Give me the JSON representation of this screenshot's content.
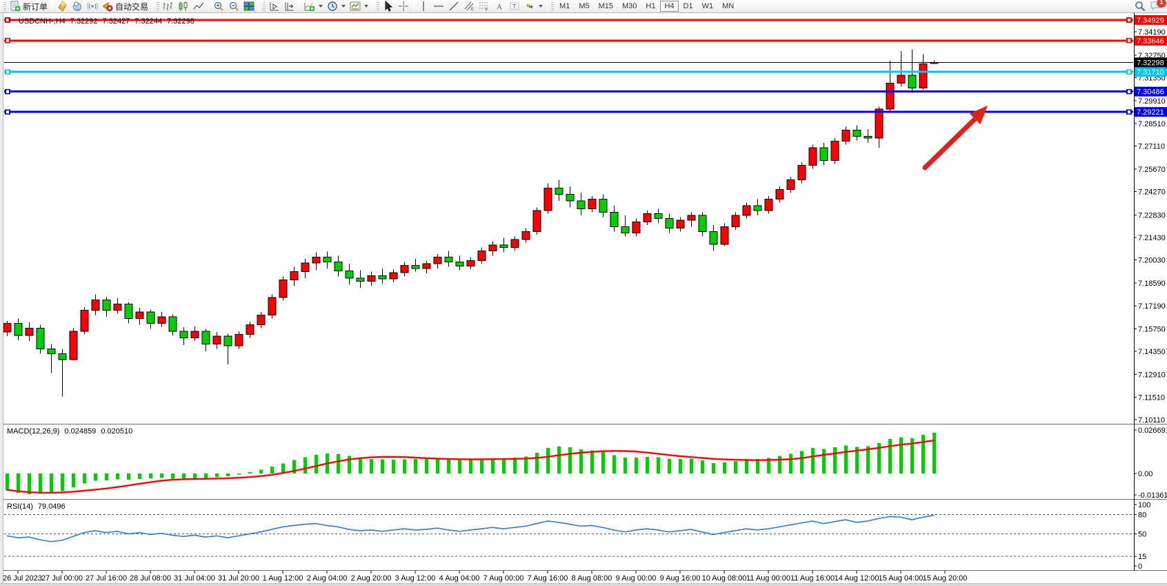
{
  "window": {
    "new_order_label": "新订单",
    "auto_trading_label": "自动交易",
    "timeframes": [
      "M1",
      "M5",
      "M15",
      "M30",
      "H1",
      "H4",
      "D1",
      "W1",
      "MN"
    ],
    "active_timeframe": "H4",
    "notification_count": "1"
  },
  "chart_data": {
    "type": "candlestick",
    "symbol_title": "USDCNH-,H4",
    "ohlc_readout": {
      "open": "7.32292",
      "high": "7.32427",
      "low": "7.32244",
      "close": "7.32298"
    },
    "bid_price": "7.32298",
    "price_axis_ticks": [
      "7.34190",
      "7.32750",
      "7.31350",
      "7.29910",
      "7.28510",
      "7.27110",
      "7.25670",
      "7.24270",
      "7.22830",
      "7.21430",
      "7.20030",
      "7.18590",
      "7.17190",
      "7.15750",
      "7.14350",
      "7.12910",
      "7.11510",
      "7.10110"
    ],
    "hlines": [
      {
        "price": "7.34929",
        "color": "#ff0000"
      },
      {
        "price": "7.33646",
        "color": "#ff0000"
      },
      {
        "price": "7.31710",
        "color": "#00c5ef"
      },
      {
        "price": "7.30486",
        "color": "#0000ff"
      },
      {
        "price": "7.29221",
        "color": "#0000ff"
      }
    ],
    "dates": [
      "26 Jul 2023",
      "27 Jul 00:00",
      "27 Jul 16:00",
      "28 Jul 08:00",
      "31 Jul 04:00",
      "31 Jul 20:00",
      "1 Aug 12:00",
      "2 Aug 04:00",
      "2 Aug 20:00",
      "3 Aug 12:00",
      "4 Aug 04:00",
      "7 Aug 00:00",
      "7 Aug 16:00",
      "8 Aug 08:00",
      "9 Aug 00:00",
      "9 Aug 16:00",
      "10 Aug 08:00",
      "11 Aug 00:00",
      "11 Aug 16:00",
      "14 Aug 12:00",
      "15 Aug 04:00",
      "15 Aug 20:00"
    ],
    "candles": [
      [
        7.1555,
        7.1625,
        7.153,
        7.161
      ],
      [
        7.161,
        7.164,
        7.1505,
        7.1535
      ],
      [
        7.1535,
        7.1615,
        7.15,
        7.158
      ],
      [
        7.158,
        7.16,
        7.142,
        7.145
      ],
      [
        7.145,
        7.148,
        7.13,
        7.142
      ],
      [
        7.142,
        7.145,
        7.1155,
        7.1385
      ],
      [
        7.1385,
        7.158,
        7.138,
        7.156
      ],
      [
        7.156,
        7.171,
        7.154,
        7.169
      ],
      [
        7.169,
        7.179,
        7.166,
        7.1755
      ],
      [
        7.1755,
        7.1775,
        7.165,
        7.169
      ],
      [
        7.169,
        7.1765,
        7.167,
        7.173
      ],
      [
        7.173,
        7.174,
        7.161,
        7.164
      ],
      [
        7.164,
        7.1705,
        7.16,
        7.168
      ],
      [
        7.168,
        7.1695,
        7.1575,
        7.161
      ],
      [
        7.161,
        7.168,
        7.1585,
        7.165
      ],
      [
        7.165,
        7.1665,
        7.1535,
        7.156
      ],
      [
        7.156,
        7.1585,
        7.1475,
        7.152
      ],
      [
        7.152,
        7.159,
        7.15,
        7.156
      ],
      [
        7.156,
        7.1575,
        7.1435,
        7.148
      ],
      [
        7.148,
        7.1555,
        7.145,
        7.153
      ],
      [
        7.153,
        7.1545,
        7.1355,
        7.147
      ],
      [
        7.147,
        7.156,
        7.145,
        7.154
      ],
      [
        7.154,
        7.162,
        7.152,
        7.16
      ],
      [
        7.16,
        7.168,
        7.158,
        7.166
      ],
      [
        7.166,
        7.179,
        7.164,
        7.177
      ],
      [
        7.177,
        7.19,
        7.175,
        7.188
      ],
      [
        7.188,
        7.196,
        7.184,
        7.193
      ],
      [
        7.193,
        7.201,
        7.189,
        7.1985
      ],
      [
        7.1985,
        7.205,
        7.194,
        7.202
      ],
      [
        7.202,
        7.2055,
        7.195,
        7.199
      ],
      [
        7.199,
        7.203,
        7.19,
        7.1935
      ],
      [
        7.1935,
        7.198,
        7.185,
        7.189
      ],
      [
        7.189,
        7.194,
        7.183,
        7.187
      ],
      [
        7.187,
        7.193,
        7.184,
        7.1905
      ],
      [
        7.1905,
        7.195,
        7.1855,
        7.1885
      ],
      [
        7.1885,
        7.1945,
        7.1865,
        7.1925
      ],
      [
        7.1925,
        7.199,
        7.19,
        7.197
      ],
      [
        7.197,
        7.201,
        7.193,
        7.195
      ],
      [
        7.195,
        7.2,
        7.192,
        7.198
      ],
      [
        7.198,
        7.204,
        7.195,
        7.202
      ],
      [
        7.202,
        7.206,
        7.196,
        7.199
      ],
      [
        7.199,
        7.203,
        7.194,
        7.1965
      ],
      [
        7.1965,
        7.202,
        7.1945,
        7.2
      ],
      [
        7.2,
        7.208,
        7.198,
        7.206
      ],
      [
        7.206,
        7.212,
        7.203,
        7.2095
      ],
      [
        7.2095,
        7.214,
        7.205,
        7.208
      ],
      [
        7.208,
        7.215,
        7.206,
        7.213
      ],
      [
        7.213,
        7.22,
        7.211,
        7.218
      ],
      [
        7.218,
        7.233,
        7.216,
        7.231
      ],
      [
        7.231,
        7.248,
        7.229,
        7.245
      ],
      [
        7.245,
        7.25,
        7.237,
        7.241
      ],
      [
        7.241,
        7.246,
        7.233,
        7.237
      ],
      [
        7.237,
        7.242,
        7.228,
        7.232
      ],
      [
        7.232,
        7.24,
        7.23,
        7.238
      ],
      [
        7.238,
        7.241,
        7.227,
        7.23
      ],
      [
        7.23,
        7.234,
        7.218,
        7.221
      ],
      [
        7.221,
        7.228,
        7.215,
        7.217
      ],
      [
        7.217,
        7.226,
        7.215,
        7.224
      ],
      [
        7.224,
        7.231,
        7.222,
        7.229
      ],
      [
        7.229,
        7.232,
        7.223,
        7.226
      ],
      [
        7.226,
        7.229,
        7.217,
        7.22
      ],
      [
        7.22,
        7.227,
        7.218,
        7.225
      ],
      [
        7.225,
        7.23,
        7.221,
        7.228
      ],
      [
        7.228,
        7.23,
        7.215,
        7.218
      ],
      [
        7.218,
        7.222,
        7.206,
        7.21
      ],
      [
        7.21,
        7.223,
        7.209,
        7.221
      ],
      [
        7.221,
        7.23,
        7.219,
        7.228
      ],
      [
        7.228,
        7.236,
        7.226,
        7.234
      ],
      [
        7.234,
        7.238,
        7.228,
        7.231
      ],
      [
        7.231,
        7.24,
        7.229,
        7.238
      ],
      [
        7.238,
        7.246,
        7.236,
        7.244
      ],
      [
        7.244,
        7.252,
        7.242,
        7.25
      ],
      [
        7.25,
        7.261,
        7.248,
        7.259
      ],
      [
        7.259,
        7.272,
        7.257,
        7.27
      ],
      [
        7.27,
        7.273,
        7.259,
        7.262
      ],
      [
        7.262,
        7.276,
        7.26,
        7.274
      ],
      [
        7.274,
        7.283,
        7.272,
        7.281
      ],
      [
        7.281,
        7.284,
        7.2745,
        7.277
      ],
      [
        7.277,
        7.2815,
        7.273,
        7.276
      ],
      [
        7.276,
        7.2955,
        7.27,
        7.294
      ],
      [
        7.294,
        7.324,
        7.293,
        7.31
      ],
      [
        7.31,
        7.33,
        7.308,
        7.315
      ],
      [
        7.315,
        7.331,
        7.304,
        7.307
      ],
      [
        7.307,
        7.328,
        7.306,
        7.322
      ],
      [
        7.3229,
        7.3243,
        7.3224,
        7.323
      ]
    ],
    "macd": {
      "label": "MACD(12,26,9)",
      "value": "0.024859",
      "signal_value": "0.020510",
      "axis_ticks": [
        "0.026691",
        "0.00",
        "-0.013612"
      ],
      "signal_period": 9,
      "histogram": [
        -0.01,
        -0.0118,
        -0.0127,
        -0.0126,
        -0.012,
        -0.0108,
        -0.0085,
        -0.0062,
        -0.0045,
        -0.0042,
        -0.0036,
        -0.0038,
        -0.0033,
        -0.003,
        -0.0028,
        -0.0032,
        -0.0036,
        -0.003,
        -0.0032,
        -0.0024,
        -0.0018,
        -0.0006,
        0.0008,
        0.0024,
        0.0042,
        0.0062,
        0.0082,
        0.01,
        0.0115,
        0.0122,
        0.0118,
        0.0108,
        0.0096,
        0.009,
        0.0086,
        0.0084,
        0.0087,
        0.0088,
        0.0088,
        0.0092,
        0.009,
        0.0084,
        0.0082,
        0.0087,
        0.0094,
        0.0093,
        0.0097,
        0.0104,
        0.0127,
        0.0156,
        0.0166,
        0.016,
        0.0148,
        0.0143,
        0.0131,
        0.0113,
        0.0097,
        0.0097,
        0.0102,
        0.0099,
        0.0089,
        0.0088,
        0.0092,
        0.0081,
        0.0064,
        0.0067,
        0.0077,
        0.009,
        0.0089,
        0.0096,
        0.0107,
        0.012,
        0.0137,
        0.0157,
        0.0151,
        0.016,
        0.0172,
        0.0164,
        0.0167,
        0.0187,
        0.0212,
        0.0222,
        0.0217,
        0.0237,
        0.0249
      ]
    },
    "rsi": {
      "label": "RSI(14)",
      "value": "79.0496",
      "axis_ticks": [
        "100",
        "80",
        "50",
        "15",
        "0"
      ],
      "levels": [
        80,
        50,
        15
      ],
      "values": [
        47,
        44,
        45,
        41,
        38,
        40,
        46,
        52,
        55,
        52,
        54,
        50,
        52,
        49,
        51,
        48,
        46,
        48,
        45,
        47,
        44,
        47,
        50,
        53,
        57,
        61,
        63,
        65,
        66,
        63,
        61,
        57,
        55,
        56,
        54,
        56,
        58,
        56,
        57,
        59,
        56,
        54,
        56,
        58,
        60,
        58,
        60,
        62,
        66,
        70,
        68,
        65,
        62,
        63,
        60,
        56,
        53,
        56,
        58,
        56,
        53,
        55,
        57,
        53,
        49,
        52,
        55,
        58,
        56,
        58,
        61,
        64,
        67,
        70,
        66,
        69,
        72,
        68,
        70,
        74,
        77,
        76,
        72,
        76,
        79.05
      ]
    },
    "colors": {
      "bull": "#ff0000",
      "bear": "#00cf00",
      "candle_outline": "#000000",
      "macd_hist": "#00cf00",
      "macd_signal": "#ff0000",
      "rsi_line": "#3b7dd8",
      "bid_line": "#000000",
      "arrow": "#de2318"
    }
  }
}
